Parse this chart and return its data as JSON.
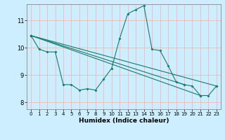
{
  "background_color": "#cceeff",
  "grid_color": "#ffaaaa",
  "line_color": "#1a7a6e",
  "xlabel": "Humidex (Indice chaleur)",
  "xlim": [
    -0.5,
    23.5
  ],
  "ylim": [
    7.75,
    11.6
  ],
  "yticks": [
    8,
    9,
    10,
    11
  ],
  "ytick_labels": [
    "8",
    "9",
    "10",
    "11"
  ],
  "xticks": [
    0,
    1,
    2,
    3,
    4,
    5,
    6,
    7,
    8,
    9,
    10,
    11,
    12,
    13,
    14,
    15,
    16,
    17,
    18,
    19,
    20,
    21,
    22,
    23
  ],
  "main_series_x": [
    0,
    1,
    2,
    3,
    4,
    5,
    6,
    7,
    8,
    9,
    10,
    11,
    12,
    13,
    14,
    15,
    16,
    17,
    18,
    19,
    20,
    21,
    22,
    23
  ],
  "main_series_y": [
    10.45,
    9.95,
    9.85,
    9.85,
    8.65,
    8.65,
    8.45,
    8.5,
    8.45,
    8.85,
    9.25,
    10.35,
    11.25,
    11.4,
    11.55,
    9.95,
    9.9,
    9.35,
    8.75,
    8.65,
    8.6,
    8.25,
    8.25,
    8.6
  ],
  "straight_lines": [
    {
      "x": [
        0,
        23
      ],
      "y": [
        10.45,
        8.6
      ]
    },
    {
      "x": [
        0,
        21
      ],
      "y": [
        10.45,
        8.25
      ]
    },
    {
      "x": [
        0,
        19
      ],
      "y": [
        10.45,
        8.65
      ]
    }
  ],
  "figsize": [
    3.2,
    2.0
  ],
  "dpi": 100
}
